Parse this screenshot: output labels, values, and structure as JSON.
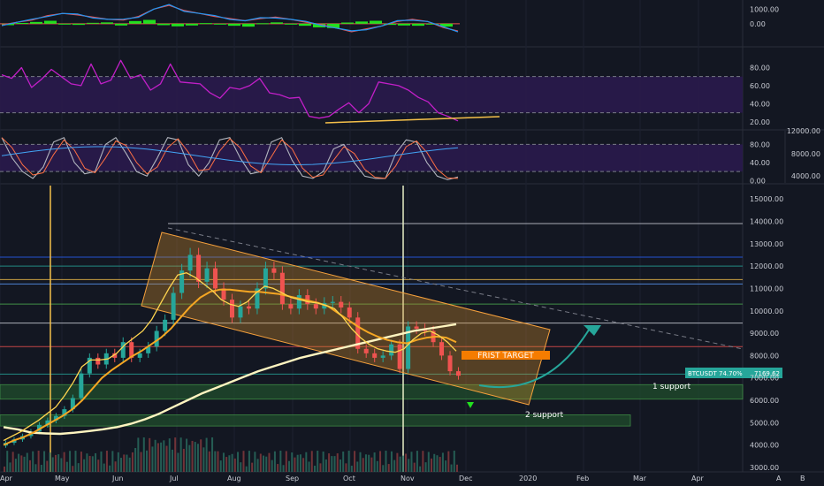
{
  "chart_data": {
    "type": "line",
    "symbol": "BTCUSDT",
    "price_badge": {
      "label": "BTCUSDT 74.70%",
      "price": "7169.62"
    },
    "annotations": {
      "target": "FRIST TARGET",
      "support_1": "1 support",
      "support_2": "2 support"
    },
    "x_ticks": [
      "Apr",
      "May",
      "Jun",
      "Jul",
      "Aug",
      "Sep",
      "Oct",
      "Nov",
      "Dec",
      "2020",
      "Feb",
      "Mar",
      "Apr"
    ],
    "corner_buttons": [
      "A",
      "B"
    ],
    "main_panel": {
      "y_ticks": [
        "15000.00",
        "14000.00",
        "13000.00",
        "12000.00",
        "11000.00",
        "10000.00",
        "9000.00",
        "8000.00",
        "7000.00",
        "6000.00",
        "5000.00",
        "4000.00",
        "3000.00"
      ],
      "ylim": [
        2800,
        15600
      ],
      "closes": [
        4100,
        4250,
        4400,
        4600,
        4900,
        5100,
        5300,
        5600,
        6100,
        7200,
        7900,
        7600,
        8100,
        7900,
        8600,
        7900,
        8100,
        8400,
        9100,
        9600,
        10800,
        11800,
        12500,
        11300,
        11900,
        11000,
        10500,
        9700,
        10200,
        10100,
        11000,
        11900,
        11700,
        10300,
        10100,
        10700,
        10300,
        10100,
        10350,
        10400,
        10150,
        9700,
        8300,
        8100,
        7900,
        8000,
        8500,
        7400,
        9300,
        9200,
        9100,
        8600,
        8000,
        7300,
        7100
      ],
      "ema_fast": [
        4200,
        4400,
        4600,
        4850,
        5100,
        5400,
        5700,
        6200,
        6800,
        7500,
        7800,
        7800,
        7850,
        8100,
        8500,
        8800,
        9100,
        9600,
        10300,
        11000,
        11600,
        11700,
        11500,
        11200,
        10900,
        10500,
        10300,
        10200,
        10400,
        10800,
        11100,
        11000,
        10800,
        10600,
        10500,
        10400,
        10350,
        10250,
        10100,
        9700,
        9200,
        8800,
        8500,
        8300,
        8200,
        8150,
        8300,
        8700,
        9000,
        9100,
        8900,
        8600,
        8200
      ],
      "ema_slow": [
        4000,
        4200,
        4350,
        4550,
        4800,
        5050,
        5300,
        5600,
        6000,
        6500,
        7000,
        7350,
        7650,
        7950,
        8200,
        8500,
        8800,
        9200,
        9700,
        10200,
        10600,
        10850,
        10950,
        10950,
        10900,
        10850,
        10850,
        10800,
        10750,
        10650,
        10550,
        10450,
        10350,
        10200,
        9900,
        9600,
        9300,
        9050,
        8850,
        8700,
        8600,
        8550,
        8700,
        8800,
        8850,
        8800,
        8600
      ],
      "ma_200": [
        4800,
        4700,
        4550,
        4520,
        4500,
        4550,
        4620,
        4700,
        4800,
        4950,
        5150,
        5400,
        5700,
        6000,
        6300,
        6550,
        6800,
        7050,
        7300,
        7500,
        7700,
        7900,
        8050,
        8200,
        8350,
        8500,
        8650,
        8800,
        8950,
        9100,
        9200,
        9300,
        9400
      ],
      "h_levels": [
        {
          "value": 13900,
          "color": "#d1d4dc"
        },
        {
          "value": 12400,
          "color": "#2962ff"
        },
        {
          "value": 12000,
          "color": "#26a69a"
        },
        {
          "value": 11400,
          "color": "#f5c04a"
        },
        {
          "value": 11200,
          "color": "#5b9cff"
        },
        {
          "value": 10300,
          "color": "#4caf50"
        },
        {
          "value": 9450,
          "color": "#d1d4dc"
        },
        {
          "value": 8400,
          "color": "#ef5350"
        },
        {
          "value": 7169,
          "color": "#26a69a"
        }
      ],
      "support_zones": [
        {
          "from": 6050,
          "to": 6700,
          "color": "#1f4d2c"
        },
        {
          "from": 4850,
          "to": 5350,
          "color": "#1f4d2c"
        }
      ]
    },
    "rsi_panel": {
      "y_ticks": [
        "80.00",
        "60.00",
        "40.00",
        "20.00"
      ],
      "ylim": [
        12,
        100
      ],
      "band": [
        30,
        70
      ],
      "values": [
        72,
        68,
        80,
        58,
        67,
        78,
        70,
        62,
        60,
        84,
        62,
        66,
        88,
        68,
        72,
        55,
        62,
        84,
        64,
        63,
        62,
        52,
        46,
        58,
        56,
        60,
        68,
        52,
        50,
        46,
        47,
        26,
        24,
        26,
        34,
        41,
        30,
        40,
        64,
        62,
        60,
        55,
        47,
        42,
        30,
        26,
        21
      ]
    },
    "stoch_panel": {
      "y_ticks": [
        "80.00",
        "40.00",
        "0.00"
      ],
      "y_ticks_left": [
        "12000.00",
        "8000.00",
        "4000.00"
      ],
      "ylim": [
        -5,
        110
      ],
      "band": [
        20,
        80
      ],
      "k_values": [
        95,
        50,
        20,
        5,
        30,
        85,
        95,
        40,
        15,
        20,
        80,
        95,
        60,
        20,
        10,
        50,
        95,
        90,
        35,
        10,
        40,
        90,
        95,
        50,
        15,
        20,
        85,
        95,
        45,
        10,
        5,
        20,
        70,
        80,
        40,
        10,
        5,
        5,
        60,
        90,
        85,
        40,
        10,
        2,
        8
      ]
    },
    "macd_panel": {
      "y_ticks": [
        "1000.00",
        "0.00"
      ],
      "ylim": [
        -1400,
        1500
      ],
      "macd_line": [
        -80,
        100,
        250,
        550,
        700,
        600,
        450,
        300,
        250,
        500,
        1000,
        1250,
        900,
        700,
        500,
        350,
        200,
        350,
        450,
        300,
        100,
        -50,
        -300,
        -550,
        -350,
        -150,
        150,
        300,
        150,
        -250,
        -500
      ],
      "hist": [
        -100,
        50,
        120,
        200,
        -40,
        -80,
        60,
        90,
        -120,
        180,
        260,
        -100,
        -180,
        -120,
        40,
        -60,
        -140,
        -200,
        30,
        90,
        -60,
        -140,
        -250,
        -300,
        80,
        150,
        200,
        -80,
        -120,
        -140,
        -40,
        -200
      ]
    }
  }
}
